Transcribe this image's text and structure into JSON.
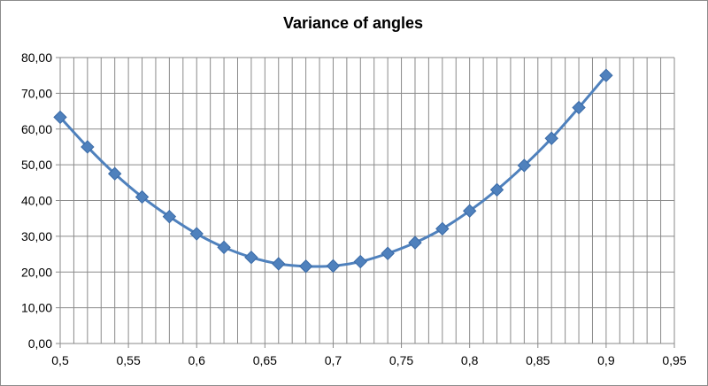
{
  "chart_data": {
    "type": "line",
    "title": "Variance of angles",
    "xlabel": "",
    "ylabel": "",
    "xlim": [
      0.5,
      0.95
    ],
    "ylim": [
      0,
      80
    ],
    "x_ticks": [
      0.5,
      0.55,
      0.6,
      0.65,
      0.7,
      0.75,
      0.8,
      0.85,
      0.9,
      0.95
    ],
    "x_tick_labels": [
      "0,5",
      "0,55",
      "0,6",
      "0,65",
      "0,7",
      "0,75",
      "0,8",
      "0,85",
      "0,9",
      "0,95"
    ],
    "y_ticks": [
      0,
      10,
      20,
      30,
      40,
      50,
      60,
      70,
      80
    ],
    "y_tick_labels": [
      "0,00",
      "10,00",
      "20,00",
      "30,00",
      "40,00",
      "50,00",
      "60,00",
      "70,00",
      "80,00"
    ],
    "grid": true,
    "legend": "none",
    "series_color": "#4f81bd",
    "marker": "diamond",
    "series": [
      {
        "x": [
          0.5,
          0.52,
          0.54,
          0.56,
          0.58,
          0.6,
          0.62,
          0.64,
          0.66,
          0.68,
          0.7,
          0.72,
          0.74,
          0.76,
          0.78,
          0.8,
          0.82,
          0.84,
          0.86,
          0.88,
          0.9
        ],
        "values": [
          63.3,
          55.0,
          47.5,
          41.0,
          35.5,
          30.7,
          26.9,
          24.1,
          22.3,
          21.6,
          21.7,
          22.9,
          25.2,
          28.2,
          32.1,
          37.1,
          43.0,
          49.8,
          57.4,
          66.0,
          75.0
        ]
      }
    ]
  }
}
